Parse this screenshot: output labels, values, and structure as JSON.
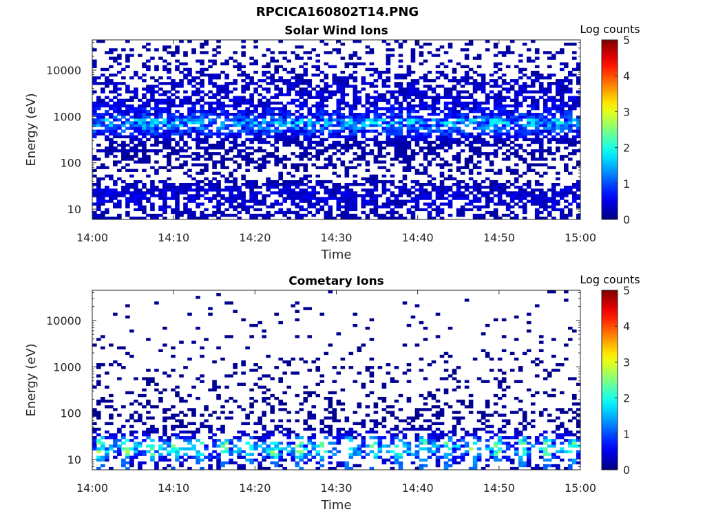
{
  "figure": {
    "title": "RPCICA160802T14.PNG"
  },
  "chart_data": [
    {
      "type": "heatmap",
      "title": "Solar Wind Ions",
      "xlabel": "Time",
      "ylabel": "Energy (eV)",
      "x_range": [
        "14:00",
        "15:00"
      ],
      "x_ticks": [
        "14:00",
        "14:10",
        "14:20",
        "14:30",
        "14:40",
        "14:50",
        "15:00"
      ],
      "y_scale": "log",
      "y_range": [
        6,
        45000
      ],
      "y_ticks": [
        "10",
        "100",
        "1000",
        "10000"
      ],
      "colorbar": {
        "label": "Log counts",
        "range": [
          0,
          5
        ],
        "ticks": [
          "0",
          "1",
          "2",
          "3",
          "4",
          "5"
        ],
        "colormap": "jet"
      },
      "count_profile": {
        "energy_eV": [
          7,
          10,
          15,
          22,
          30,
          50,
          100,
          300,
          800,
          1000,
          2000,
          5000,
          10000,
          30000
        ],
        "typical_log_counts": [
          0.3,
          0.4,
          0.5,
          0.5,
          0.4,
          0.2,
          0.2,
          0.3,
          1.8,
          0.9,
          0.5,
          0.4,
          0.3,
          0.2
        ],
        "fill_fraction": [
          0.5,
          0.55,
          0.6,
          0.75,
          0.7,
          0.2,
          0.45,
          0.6,
          0.85,
          0.7,
          0.6,
          0.5,
          0.3,
          0.2
        ]
      }
    },
    {
      "type": "heatmap",
      "title": "Cometary Ions",
      "xlabel": "Time",
      "ylabel": "Energy (eV)",
      "x_range": [
        "14:00",
        "15:00"
      ],
      "x_ticks": [
        "14:00",
        "14:10",
        "14:20",
        "14:30",
        "14:40",
        "14:50",
        "15:00"
      ],
      "y_scale": "log",
      "y_range": [
        6,
        45000
      ],
      "y_ticks": [
        "10",
        "100",
        "1000",
        "10000"
      ],
      "colorbar": {
        "label": "Log counts",
        "range": [
          0,
          5
        ],
        "ticks": [
          "0",
          "1",
          "2",
          "3",
          "4",
          "5"
        ],
        "colormap": "jet"
      },
      "count_profile": {
        "energy_eV": [
          7,
          10,
          15,
          22,
          30,
          50,
          100,
          300,
          800,
          1000,
          2000,
          5000,
          10000,
          30000
        ],
        "typical_log_counts": [
          0.3,
          0.5,
          1.6,
          1.4,
          0.6,
          0.2,
          0.1,
          0.1,
          0.1,
          0.1,
          0.1,
          0.1,
          0.1,
          0.1
        ],
        "fill_fraction": [
          0.3,
          0.45,
          0.5,
          0.5,
          0.55,
          0.3,
          0.3,
          0.15,
          0.12,
          0.1,
          0.07,
          0.05,
          0.04,
          0.02
        ]
      }
    }
  ]
}
